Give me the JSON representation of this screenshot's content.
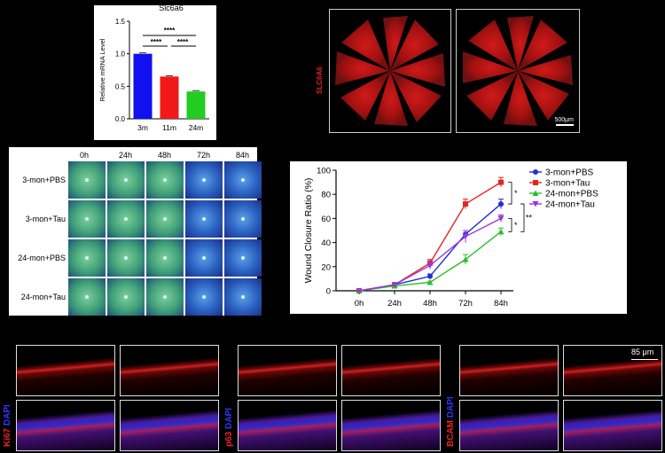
{
  "panel_a": {
    "title": "Slc6a6",
    "sig_top": "****",
    "sig_left": "****",
    "sig_right": "****"
  },
  "panel_b": {
    "stain_label": "SLC6A6",
    "scalebar": "500μm"
  },
  "panel_c": {
    "time_labels": [
      "0h",
      "24h",
      "48h",
      "72h",
      "84h"
    ],
    "row_labels": [
      "3-mon+PBS",
      "3-mon+Tau",
      "24-mon+PBS",
      "24-mon+Tau"
    ]
  },
  "panel_d": {
    "sig_marks": [
      "*",
      "*",
      "**"
    ]
  },
  "panel_e": {
    "markers": [
      {
        "name": "Ki67",
        "suffix": " DAPI"
      },
      {
        "name": "p63",
        "suffix": " DAPI"
      },
      {
        "name": "BCAM",
        "suffix": " DAPI"
      }
    ],
    "scalebar": "85 μm"
  },
  "colors": {
    "blue": "#1f2ed6",
    "red": "#e8231f",
    "green": "#2bbf2b",
    "purple": "#9b38d8"
  },
  "chart_data": [
    {
      "type": "bar",
      "title": "Slc6a6",
      "categories": [
        "3m",
        "11m",
        "24m"
      ],
      "values": [
        1.0,
        0.65,
        0.42
      ],
      "colors": [
        "#1010f0",
        "#f01818",
        "#22cc22"
      ],
      "xlabel": "",
      "ylabel": "Relative mRNA  Level",
      "ylim": [
        0,
        1.5
      ],
      "yticks": [
        "0.0",
        "0.5",
        "1.0",
        "1.5"
      ]
    },
    {
      "type": "line",
      "categories": [
        "0h",
        "24h",
        "48h",
        "72h",
        "84h"
      ],
      "xlabel": "",
      "ylabel": "Wound Closure Ratio (%)",
      "ylim": [
        0,
        100
      ],
      "yticks": [
        "0",
        "20",
        "40",
        "60",
        "80",
        "100"
      ],
      "legend": "top-right",
      "series": [
        {
          "name": "3-mon+PBS",
          "values": [
            0,
            5,
            12,
            47,
            72
          ],
          "errors": [
            1,
            1,
            2,
            3,
            4
          ],
          "color": "#1f2ed6",
          "marker": "circle"
        },
        {
          "name": "3-mon+Tau",
          "values": [
            0,
            5,
            23,
            72,
            90
          ],
          "errors": [
            1,
            1,
            3,
            4,
            4
          ],
          "color": "#e8231f",
          "marker": "square"
        },
        {
          "name": "24-mon+PBS",
          "values": [
            0,
            4,
            7,
            26,
            49
          ],
          "errors": [
            1,
            1,
            1,
            4,
            3
          ],
          "color": "#2bbf2b",
          "marker": "triangle"
        },
        {
          "name": "24-mon+Tau",
          "values": [
            0,
            5,
            21,
            45,
            60
          ],
          "errors": [
            1,
            1,
            3,
            5,
            3
          ],
          "color": "#9b38d8",
          "marker": "tri-down"
        }
      ]
    }
  ]
}
